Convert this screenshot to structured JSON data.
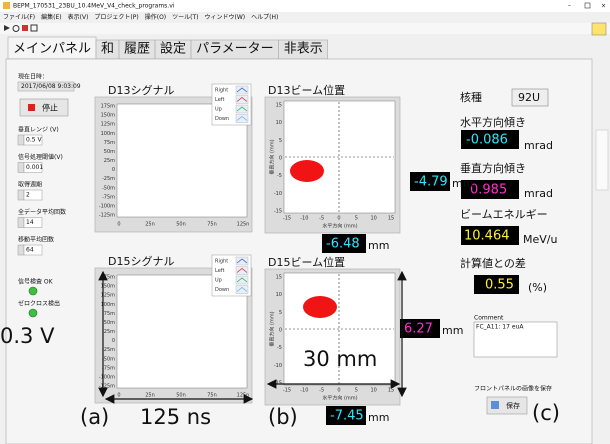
{
  "window": {
    "title": "BEPM_170531_23BU_10.4MeV_V4_check_programs.vi",
    "menu": [
      "ファイル(F)",
      "編集(E)",
      "表示(V)",
      "プロジェクト(P)",
      "操作(O)",
      "ツール(T)",
      "ウィンドウ(W)",
      "ヘルプ(H)"
    ],
    "tabs": [
      "メインパネル",
      "和",
      "履歴",
      "設定",
      "パラメーター",
      "非表示"
    ]
  },
  "left": {
    "datetime_label": "現在日時：",
    "datetime": "2017/06/08 9:03:09",
    "stop": "停止",
    "controls": [
      {
        "label": "垂直レンジ (V)",
        "value": "0.5 V"
      },
      {
        "label": "信号処理閾値(V)",
        "value": "0.001"
      },
      {
        "label": "取得週期",
        "value": "2"
      },
      {
        "label": "全データ平均回数",
        "value": "14"
      },
      {
        "label": "移動平均回数",
        "value": "64"
      }
    ],
    "status": [
      "信号検査 OK",
      "ゼロクロス検出"
    ]
  },
  "signals": [
    {
      "title": "D13シグナル"
    },
    {
      "title": "D15シグナル"
    }
  ],
  "signal_axes": {
    "yticks": [
      "175m",
      "150m",
      "125m",
      "100m",
      "75m",
      "50m",
      "25m",
      "0",
      "-25m",
      "-50m",
      "-75m",
      "-100m",
      "-125m"
    ],
    "xticks": [
      "0",
      "25n",
      "50n",
      "75n",
      "125n"
    ],
    "legend": [
      "Right",
      "Left",
      "Up",
      "Down"
    ]
  },
  "beam": [
    {
      "title": "D13ビーム位置",
      "horizontal": "-6.48",
      "vertical": "-4.79"
    },
    {
      "title": "D15ビーム位置",
      "horizontal": "-7.45",
      "vertical": "6.27"
    }
  ],
  "beam_axes": {
    "xlabel": "水平方向 (mm)",
    "ylabel": "垂直方向 (mm)",
    "ticks": [
      "-15",
      "-10",
      "-5",
      "0",
      "5",
      "10",
      "15"
    ]
  },
  "unit": "mm",
  "right": {
    "nuclide_label": "核種",
    "nuclide": "92U",
    "h_tilt_label": "水平方向傾き",
    "h_tilt": "-0.086",
    "v_tilt_label": "垂直方向傾き",
    "v_tilt": "0.985",
    "tilt_unit": "mrad",
    "energy_label": "ビームエネルギー",
    "energy": "10.464",
    "energy_unit": "MeV/u",
    "diff_label": "計算値との差",
    "diff": "0.55",
    "diff_unit": "(%)",
    "comment_label": "Comment",
    "comment": "FC_A11: 17 euA",
    "save_label": "フロントパネルの画像を保存",
    "save": "保存"
  },
  "annotations": {
    "voltage": "0.3 V",
    "time": "125 ns",
    "distance": "30 mm",
    "a": "(a)",
    "b": "(b)",
    "c": "(c)"
  }
}
